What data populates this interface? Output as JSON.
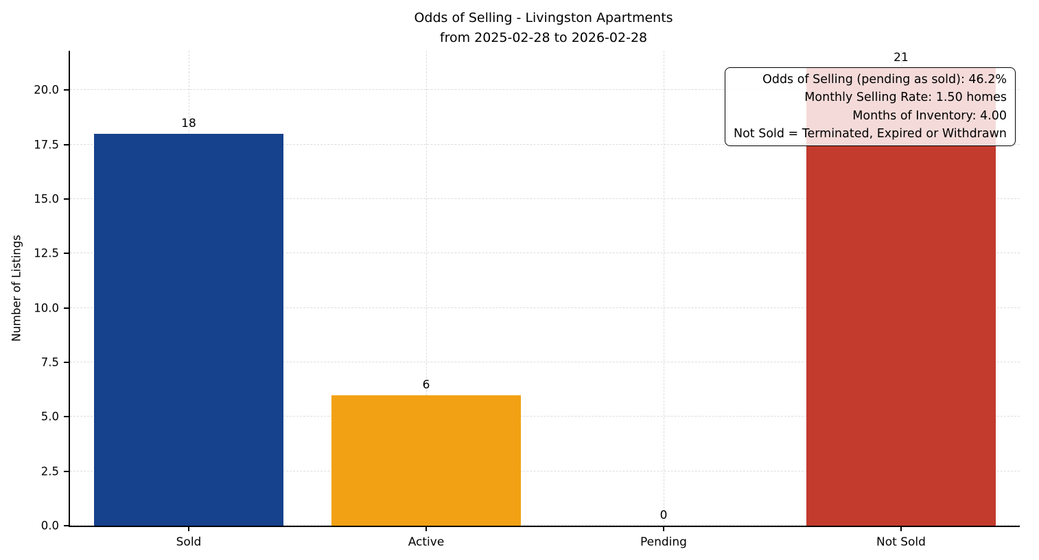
{
  "chart_data": {
    "type": "bar",
    "title": "Odds of Selling - Livingston Apartments\nfrom 2025-02-28 to 2026-02-28",
    "title_line1": "Odds of Selling - Livingston Apartments",
    "title_line2": "from 2025-02-28 to 2026-02-28",
    "xlabel": "",
    "ylabel": "Number of Listings",
    "categories": [
      "Sold",
      "Active",
      "Pending",
      "Not Sold"
    ],
    "values": [
      18,
      6,
      0,
      21
    ],
    "bar_colors": [
      "#16418c",
      "#f2a114",
      null,
      "#c23b2d"
    ],
    "bar_width_frac": 0.8,
    "ylim": [
      0,
      21.8
    ],
    "yticks": [
      0,
      2.5,
      5,
      7.5,
      10,
      12.5,
      15,
      17.5,
      20
    ],
    "ytick_labels": [
      "0.0",
      "2.5",
      "5.0",
      "7.5",
      "10.0",
      "12.5",
      "15.0",
      "17.5",
      "20.0"
    ],
    "grid": "dashed gridlines on both axes",
    "legend": "none",
    "annotation": {
      "lines": [
        "Odds of Selling (pending as sold): 46.2%",
        "Monthly Selling Rate: 1.50 homes",
        "Months of Inventory: 4.00",
        "Not Sold = Terminated, Expired or Withdrawn"
      ]
    }
  }
}
